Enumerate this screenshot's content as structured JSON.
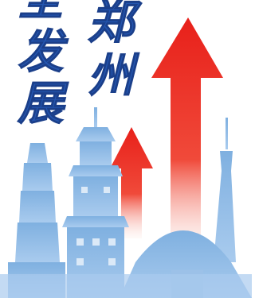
{
  "poster": {
    "left_column": [
      "全",
      "发",
      "展"
    ],
    "right_column": [
      "郑",
      "州"
    ]
  }
}
